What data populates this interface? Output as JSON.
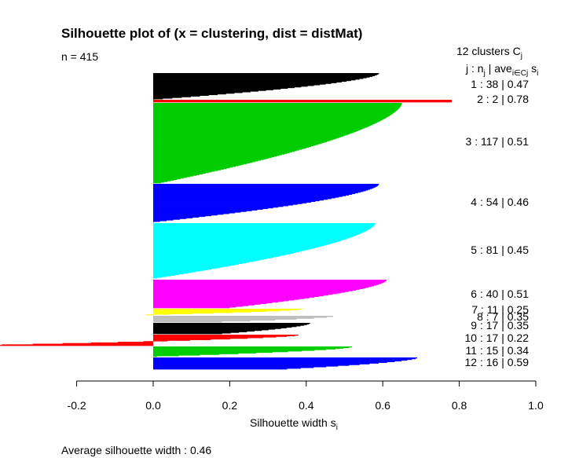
{
  "chart_data": {
    "type": "bar",
    "title": "Silhouette plot of (x = clustering, dist = distMat)",
    "n_label": "n = 415",
    "clusters_header": "12  clusters  C",
    "clusters_header_sub": "j",
    "column_header": {
      "j": "j : ",
      "n": "n",
      "n_sub": "j",
      "sep": " | ave",
      "ave_sub": "i∈Cj",
      "s": " s",
      "s_sub": "i"
    },
    "xlabel": "Silhouette width s",
    "xlabel_sub": "i",
    "xlim": [
      -0.2,
      1.0
    ],
    "xticks": [
      "-0.2",
      "0.0",
      "0.2",
      "0.4",
      "0.6",
      "0.8",
      "1.0"
    ],
    "average_label": "Average silhouette width :  0.46",
    "average_silhouette_width": 0.46,
    "clusters": [
      {
        "j": 1,
        "label": "1 :   38  | 0.47",
        "n": 38,
        "ave": 0.47,
        "color": "#000000",
        "max": 0.59,
        "min": 0.0
      },
      {
        "j": 2,
        "label": "2 :   2  | 0.78",
        "n": 2,
        "ave": 0.78,
        "color": "#ff0000",
        "max": 0.78,
        "min": 0.78
      },
      {
        "j": 3,
        "label": "3 :   117  | 0.51",
        "n": 117,
        "ave": 0.51,
        "color": "#00cd00",
        "max": 0.65,
        "min": 0.02
      },
      {
        "j": 4,
        "label": "4 :   54  | 0.46",
        "n": 54,
        "ave": 0.46,
        "color": "#0000ff",
        "max": 0.59,
        "min": 0.0
      },
      {
        "j": 5,
        "label": "5 :   81  | 0.45",
        "n": 81,
        "ave": 0.45,
        "color": "#00ffff",
        "max": 0.58,
        "min": 0.0
      },
      {
        "j": 6,
        "label": "6 :   40  | 0.51",
        "n": 40,
        "ave": 0.51,
        "color": "#ff00ff",
        "max": 0.61,
        "min": 0.2
      },
      {
        "j": 7,
        "label": "7 :   11  | 0.25",
        "n": 11,
        "ave": 0.25,
        "color": "#ffff00",
        "max": 0.39,
        "min": -0.02
      },
      {
        "j": 8,
        "label": "8 :   7  | 0.35",
        "n": 7,
        "ave": 0.35,
        "color": "#bebebe",
        "max": 0.47,
        "min": 0.18
      },
      {
        "j": 9,
        "label": "9 :   17  | 0.35",
        "n": 17,
        "ave": 0.35,
        "color": "#000000",
        "max": 0.41,
        "min": 0.18
      },
      {
        "j": 10,
        "label": "10 :   17  | 0.22",
        "n": 17,
        "ave": 0.22,
        "color": "#ff0000",
        "max": 0.38,
        "min": -0.48
      },
      {
        "j": 11,
        "label": "11 :   15  | 0.34",
        "n": 15,
        "ave": 0.34,
        "color": "#00cd00",
        "max": 0.52,
        "min": 0.01
      },
      {
        "j": 12,
        "label": "12 :   16  | 0.59",
        "n": 16,
        "ave": 0.59,
        "color": "#0000ff",
        "max": 0.69,
        "min": 0.35
      }
    ]
  }
}
